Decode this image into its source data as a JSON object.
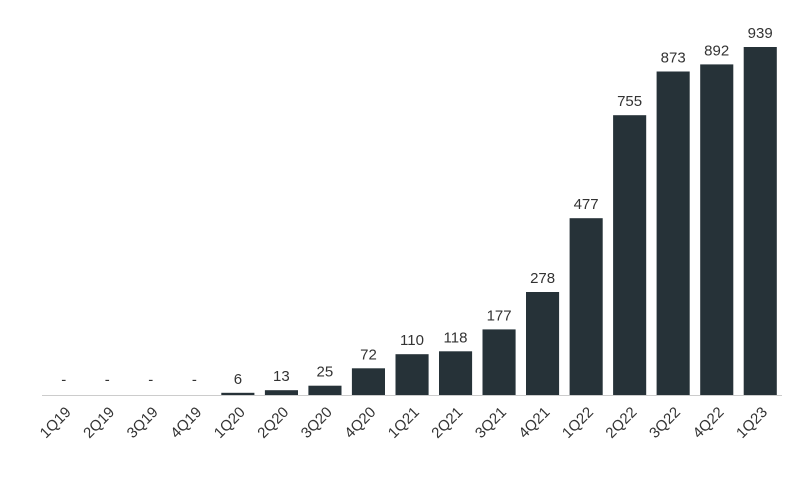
{
  "chart_data": {
    "type": "bar",
    "categories": [
      "1Q19",
      "2Q19",
      "3Q19",
      "4Q19",
      "1Q20",
      "2Q20",
      "3Q20",
      "4Q20",
      "1Q21",
      "2Q21",
      "3Q21",
      "4Q21",
      "1Q22",
      "2Q22",
      "3Q22",
      "4Q22",
      "1Q23"
    ],
    "values": [
      0,
      0,
      0,
      0,
      6,
      13,
      25,
      72,
      110,
      118,
      177,
      278,
      477,
      755,
      873,
      892,
      939
    ],
    "data_labels": [
      "-",
      "-",
      "-",
      "-",
      "6",
      "13",
      "25",
      "72",
      "110",
      "118",
      "177",
      "278",
      "477",
      "755",
      "873",
      "892",
      "939"
    ],
    "title": "",
    "xlabel": "",
    "ylabel": "",
    "ylim": [
      0,
      950
    ],
    "grid": false,
    "legend": "none",
    "bar_color": "#263238"
  }
}
